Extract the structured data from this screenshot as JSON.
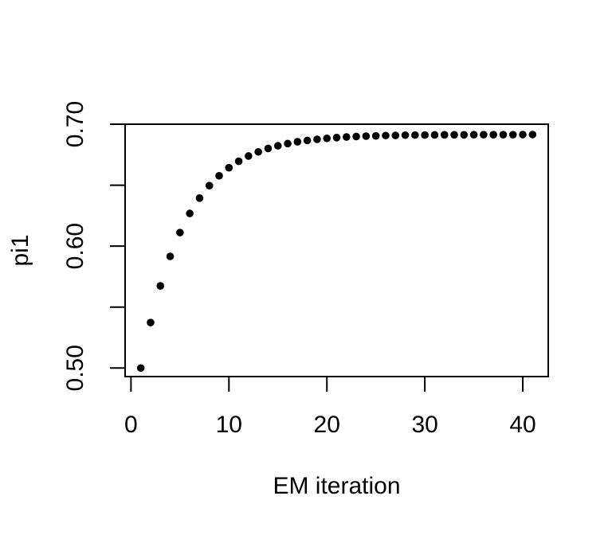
{
  "figure": {
    "background_color": "#ffffff",
    "foreground_color": "#000000"
  },
  "chart_data": {
    "type": "scatter",
    "title": "",
    "xlabel": "EM iteration",
    "ylabel": "pi1",
    "marker": "filled-circle",
    "marker_color": "#000000",
    "grid": false,
    "full_box": true,
    "legend": "none",
    "xlim": [
      -0.6,
      42.6
    ],
    "ylim": [
      0.493,
      0.7
    ],
    "x_ticks": [
      {
        "value": 0,
        "label": "0"
      },
      {
        "value": 10,
        "label": "10"
      },
      {
        "value": 20,
        "label": "20"
      },
      {
        "value": 30,
        "label": "30"
      },
      {
        "value": 40,
        "label": "40"
      }
    ],
    "y_ticks": [
      {
        "value": 0.5,
        "label": "0.50"
      },
      {
        "value": 0.55,
        "label": ""
      },
      {
        "value": 0.6,
        "label": "0.60"
      },
      {
        "value": 0.65,
        "label": ""
      },
      {
        "value": 0.7,
        "label": "0.70"
      }
    ],
    "x": [
      1,
      2,
      3,
      4,
      5,
      6,
      7,
      8,
      9,
      10,
      11,
      12,
      13,
      14,
      15,
      16,
      17,
      18,
      19,
      20,
      21,
      22,
      23,
      24,
      25,
      26,
      27,
      28,
      29,
      30,
      31,
      32,
      33,
      34,
      35,
      36,
      37,
      38,
      39,
      40,
      41
    ],
    "y": [
      0.5,
      0.5373,
      0.5674,
      0.5916,
      0.6111,
      0.6268,
      0.6394,
      0.6496,
      0.6577,
      0.6643,
      0.6696,
      0.6739,
      0.6773,
      0.6801,
      0.6823,
      0.6841,
      0.6856,
      0.6867,
      0.6876,
      0.6884,
      0.689,
      0.6895,
      0.6899,
      0.6902,
      0.6904,
      0.6907,
      0.6908,
      0.691,
      0.6911,
      0.6911,
      0.6912,
      0.6913,
      0.6913,
      0.6913,
      0.6914,
      0.6914,
      0.6914,
      0.6914,
      0.6914,
      0.6915,
      0.6915
    ]
  }
}
